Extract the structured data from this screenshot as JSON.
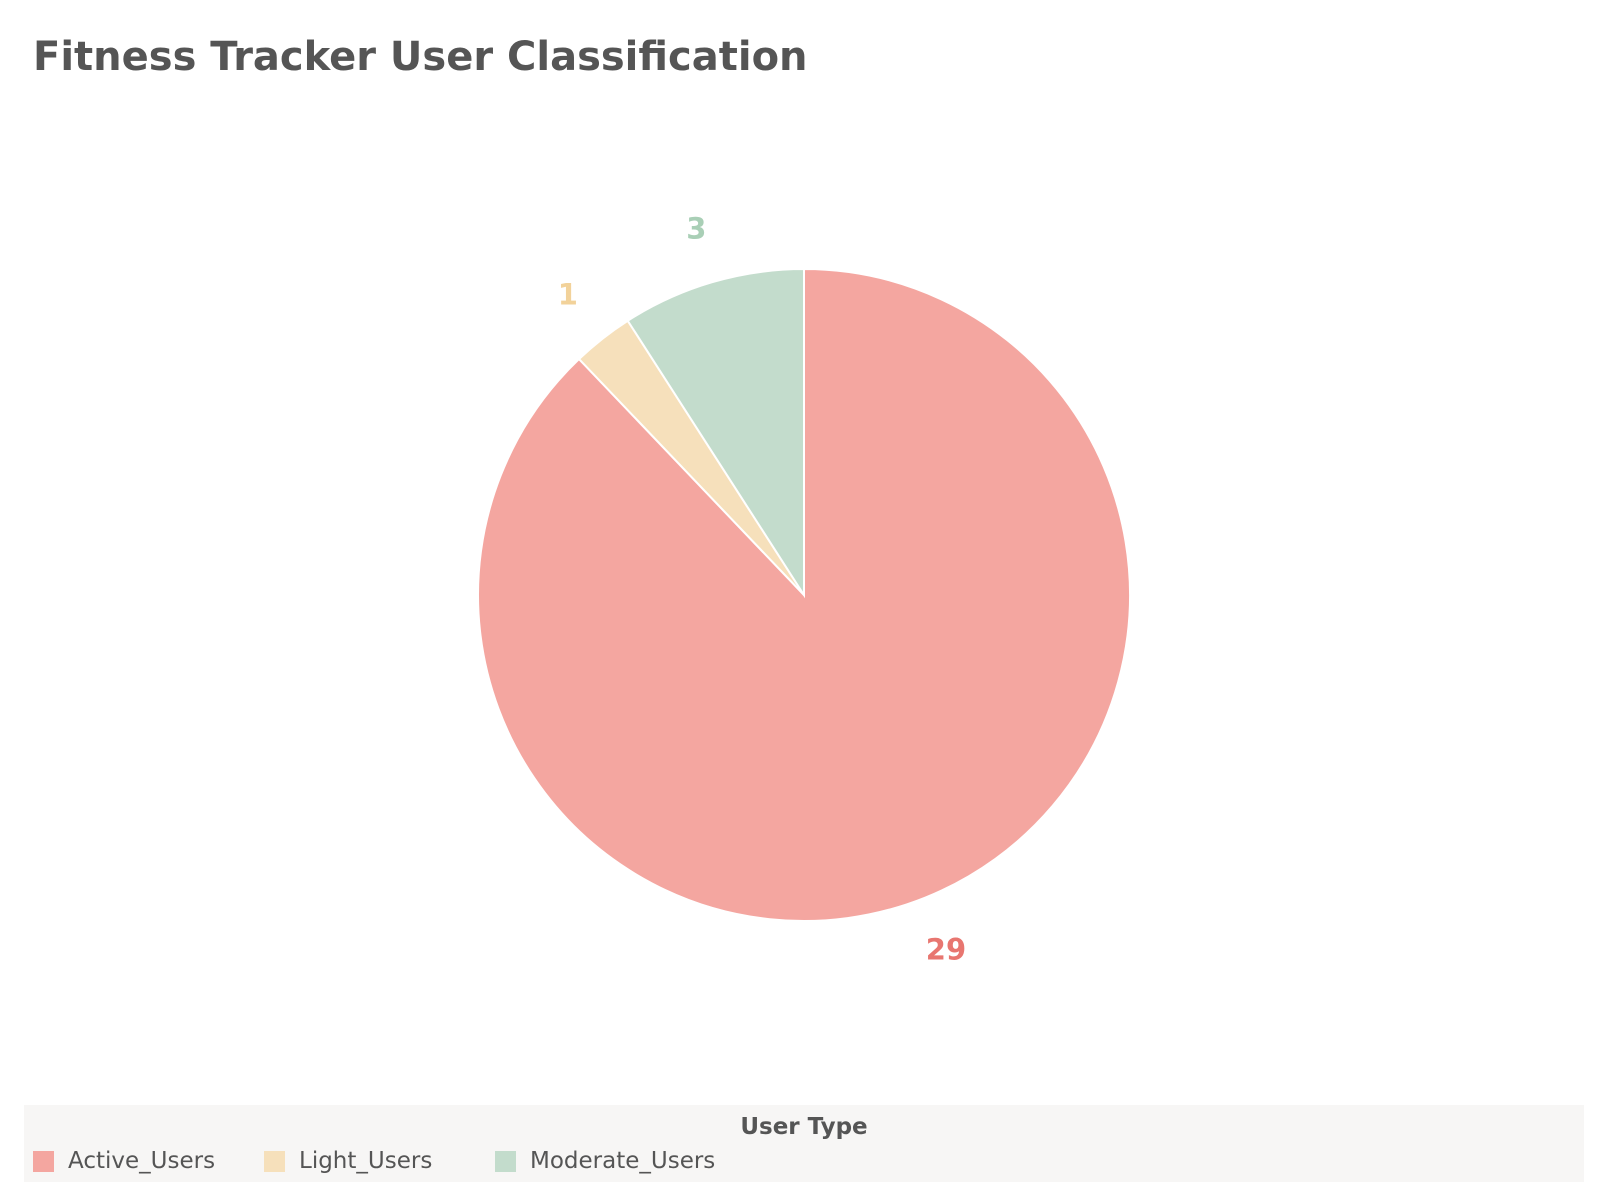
{
  "chart_data": {
    "type": "pie",
    "title": "Fitness Tracker User Classification",
    "slices": [
      {
        "label": "Active_Users",
        "value": 29,
        "color": "#f4a6a0",
        "label_color": "#e87670"
      },
      {
        "label": "Light_Users",
        "value": 1,
        "color": "#f6e0bb",
        "label_color": "#f2d29a"
      },
      {
        "label": "Moderate_Users",
        "value": 3,
        "color": "#c3dccc",
        "label_color": "#a9cfb6"
      }
    ],
    "legend": {
      "title": "User Type",
      "placement": "bottom"
    }
  }
}
